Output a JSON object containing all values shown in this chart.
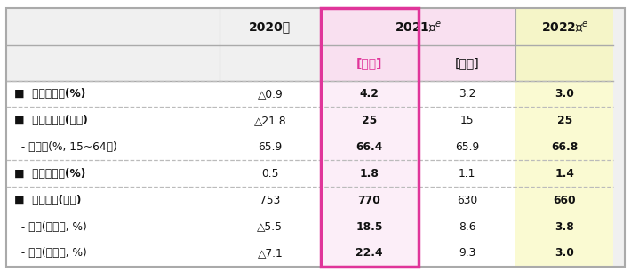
{
  "rows": [
    {
      "label": "■  경제성장률(%)",
      "bold_label": true,
      "values": [
        "△0.9",
        "4.2",
        "3.2",
        "3.0"
      ],
      "bold_values": [
        false,
        true,
        false,
        true
      ],
      "separator_above": true,
      "separator_below": false
    },
    {
      "label": "■  취업자증감(만명)",
      "bold_label": true,
      "values": [
        "△21.8",
        "25",
        "15",
        "25"
      ],
      "bold_values": [
        false,
        true,
        false,
        true
      ],
      "separator_above": true,
      "separator_below": false
    },
    {
      "label": "  - 고용률(%, 15~64세)",
      "bold_label": false,
      "values": [
        "65.9",
        "66.4",
        "65.9",
        "66.8"
      ],
      "bold_values": [
        false,
        true,
        false,
        true
      ],
      "separator_above": false,
      "separator_below": true
    },
    {
      "label": "■  소비자물가(%)",
      "bold_label": true,
      "values": [
        "0.5",
        "1.8",
        "1.1",
        "1.4"
      ],
      "bold_values": [
        false,
        true,
        false,
        true
      ],
      "separator_above": false,
      "separator_below": true
    },
    {
      "label": "■  경상수지(억불)",
      "bold_label": true,
      "values": [
        "753",
        "770",
        "630",
        "660"
      ],
      "bold_values": [
        false,
        true,
        false,
        true
      ],
      "separator_above": false,
      "separator_below": false
    },
    {
      "label": "  - 수출(전년비, %)",
      "bold_label": false,
      "values": [
        "△5.5",
        "18.5",
        "8.6",
        "3.8"
      ],
      "bold_values": [
        false,
        true,
        false,
        true
      ],
      "separator_above": false,
      "separator_below": false
    },
    {
      "label": "  - 수입(전년비, %)",
      "bold_label": false,
      "values": [
        "△7.1",
        "22.4",
        "9.3",
        "3.0"
      ],
      "bold_values": [
        false,
        true,
        false,
        true
      ],
      "separator_above": false,
      "separator_below": false
    }
  ],
  "bg_outer": "#f0f0f0",
  "bg_white": "#ffffff",
  "bg_pink_header": "#f9e0f0",
  "bg_yellow_header": "#f5f5c8",
  "bg_pink_col": "#fceef8",
  "bg_yellow_col": "#fafad2",
  "border_color": "#aaaaaa",
  "pink_box_color": "#e0359a",
  "text_color": "#111111",
  "sep_color": "#bbbbbb",
  "figsize": [
    7.1,
    3.06
  ],
  "dpi": 100
}
